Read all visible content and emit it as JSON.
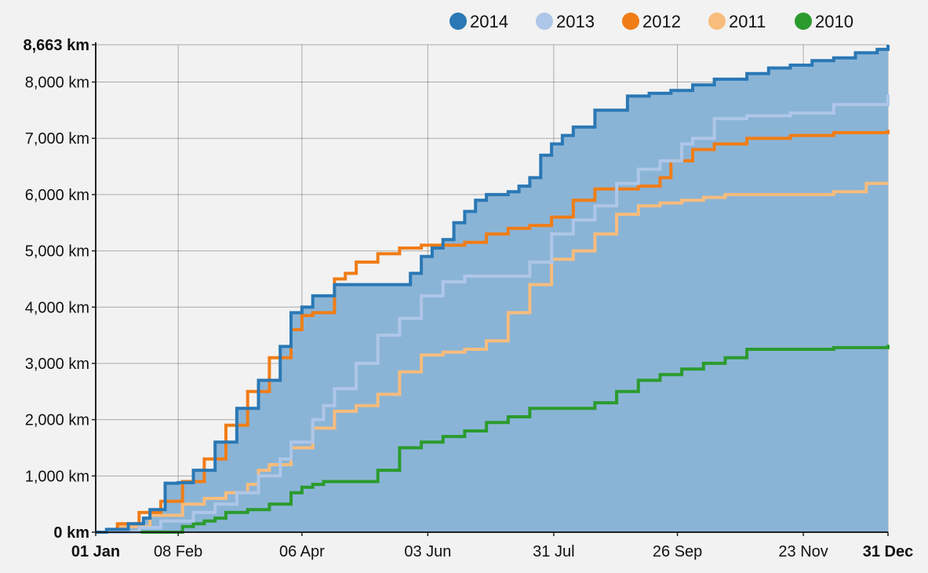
{
  "chart_data": {
    "type": "line",
    "title": "",
    "xlabel": "",
    "ylabel": "",
    "x_unit": "day of year",
    "xlim": [
      0,
      365
    ],
    "ylim": [
      0,
      8663
    ],
    "x_tick_labels": [
      {
        "day": 0,
        "label": "01 Jan",
        "bold": true
      },
      {
        "day": 38,
        "label": "08 Feb",
        "bold": false
      },
      {
        "day": 95,
        "label": "06 Apr",
        "bold": false
      },
      {
        "day": 153,
        "label": "03 Jun",
        "bold": false
      },
      {
        "day": 211,
        "label": "31 Jul",
        "bold": false
      },
      {
        "day": 268,
        "label": "26 Sep",
        "bold": false
      },
      {
        "day": 326,
        "label": "23 Nov",
        "bold": false
      },
      {
        "day": 365,
        "label": "31 Dec",
        "bold": true
      }
    ],
    "y_tick_labels": [
      {
        "value": 0,
        "label": "0 km",
        "bold": true
      },
      {
        "value": 1000,
        "label": "1,000 km",
        "bold": false
      },
      {
        "value": 2000,
        "label": "2,000 km",
        "bold": false
      },
      {
        "value": 3000,
        "label": "3,000 km",
        "bold": false
      },
      {
        "value": 4000,
        "label": "4,000 km",
        "bold": false
      },
      {
        "value": 5000,
        "label": "5,000 km",
        "bold": false
      },
      {
        "value": 6000,
        "label": "6,000 km",
        "bold": false
      },
      {
        "value": 7000,
        "label": "7,000 km",
        "bold": false
      },
      {
        "value": 8000,
        "label": "8,000 km",
        "bold": false
      },
      {
        "value": 8663,
        "label": "8,663 km",
        "bold": true
      }
    ],
    "grid": true,
    "legend_position": "top-right",
    "area_fill": {
      "series": "2014",
      "color": "#8ab4d6"
    },
    "series": [
      {
        "name": "2014",
        "color": "#2a78b5",
        "x": [
          0,
          5,
          15,
          22,
          25,
          32,
          38,
          45,
          55,
          65,
          75,
          85,
          90,
          95,
          100,
          110,
          120,
          125,
          140,
          145,
          150,
          155,
          160,
          165,
          170,
          175,
          180,
          190,
          195,
          200,
          205,
          210,
          215,
          220,
          230,
          245,
          255,
          265,
          275,
          285,
          300,
          310,
          320,
          330,
          340,
          350,
          360,
          365
        ],
        "y": [
          0,
          50,
          150,
          250,
          400,
          870,
          880,
          1100,
          1600,
          2200,
          2700,
          3300,
          3900,
          4000,
          4200,
          4400,
          4400,
          4400,
          4400,
          4600,
          4900,
          5050,
          5200,
          5500,
          5700,
          5900,
          6000,
          6050,
          6150,
          6300,
          6700,
          6900,
          7050,
          7200,
          7500,
          7750,
          7800,
          7850,
          7950,
          8050,
          8150,
          8250,
          8300,
          8380,
          8430,
          8520,
          8580,
          8663
        ]
      },
      {
        "name": "2013",
        "color": "#aec6e8",
        "x": [
          0,
          20,
          30,
          45,
          55,
          65,
          75,
          85,
          90,
          100,
          105,
          110,
          120,
          130,
          140,
          150,
          160,
          170,
          180,
          190,
          200,
          210,
          220,
          230,
          240,
          250,
          260,
          270,
          275,
          285,
          300,
          320,
          340,
          365
        ],
        "y": [
          0,
          80,
          200,
          350,
          500,
          700,
          1000,
          1300,
          1600,
          2000,
          2250,
          2550,
          3000,
          3500,
          3800,
          4200,
          4450,
          4550,
          4550,
          4550,
          4800,
          5300,
          5550,
          5800,
          6200,
          6450,
          6600,
          6900,
          7000,
          7350,
          7400,
          7450,
          7600,
          7780
        ]
      },
      {
        "name": "2012",
        "color": "#f07d16",
        "x": [
          0,
          10,
          20,
          30,
          40,
          50,
          60,
          70,
          80,
          90,
          95,
          100,
          110,
          115,
          120,
          130,
          140,
          150,
          160,
          170,
          180,
          190,
          200,
          210,
          220,
          230,
          240,
          250,
          260,
          265,
          275,
          285,
          300,
          320,
          340,
          365
        ],
        "y": [
          0,
          150,
          350,
          550,
          900,
          1300,
          1900,
          2500,
          3100,
          3600,
          3850,
          3900,
          4500,
          4600,
          4800,
          4950,
          5050,
          5100,
          5100,
          5150,
          5300,
          5400,
          5450,
          5600,
          5900,
          6100,
          6100,
          6150,
          6300,
          6600,
          6800,
          6900,
          7000,
          7050,
          7100,
          7150
        ]
      },
      {
        "name": "2011",
        "color": "#f8bc7c",
        "x": [
          0,
          10,
          25,
          40,
          50,
          60,
          70,
          75,
          80,
          90,
          100,
          110,
          120,
          130,
          140,
          150,
          160,
          170,
          180,
          190,
          200,
          210,
          220,
          230,
          240,
          250,
          260,
          270,
          280,
          290,
          300,
          320,
          340,
          355,
          365
        ],
        "y": [
          0,
          100,
          300,
          500,
          600,
          700,
          850,
          1100,
          1200,
          1500,
          1850,
          2150,
          2250,
          2450,
          2850,
          3150,
          3200,
          3250,
          3400,
          3900,
          4400,
          4850,
          5000,
          5300,
          5650,
          5800,
          5850,
          5900,
          5950,
          6000,
          6000,
          6000,
          6050,
          6200,
          6200
        ]
      },
      {
        "name": "2010",
        "color": "#2b9b2e",
        "x": [
          0,
          35,
          40,
          45,
          50,
          55,
          60,
          70,
          80,
          90,
          95,
          100,
          105,
          110,
          120,
          130,
          140,
          150,
          160,
          170,
          180,
          190,
          200,
          205,
          210,
          230,
          240,
          250,
          260,
          270,
          280,
          290,
          300,
          320,
          340,
          365
        ],
        "y": [
          0,
          0,
          100,
          150,
          200,
          250,
          350,
          400,
          500,
          700,
          800,
          850,
          900,
          900,
          900,
          1100,
          1500,
          1600,
          1700,
          1800,
          1950,
          2050,
          2200,
          2200,
          2200,
          2300,
          2500,
          2700,
          2800,
          2900,
          3000,
          3100,
          3250,
          3250,
          3280,
          3330
        ]
      }
    ]
  }
}
